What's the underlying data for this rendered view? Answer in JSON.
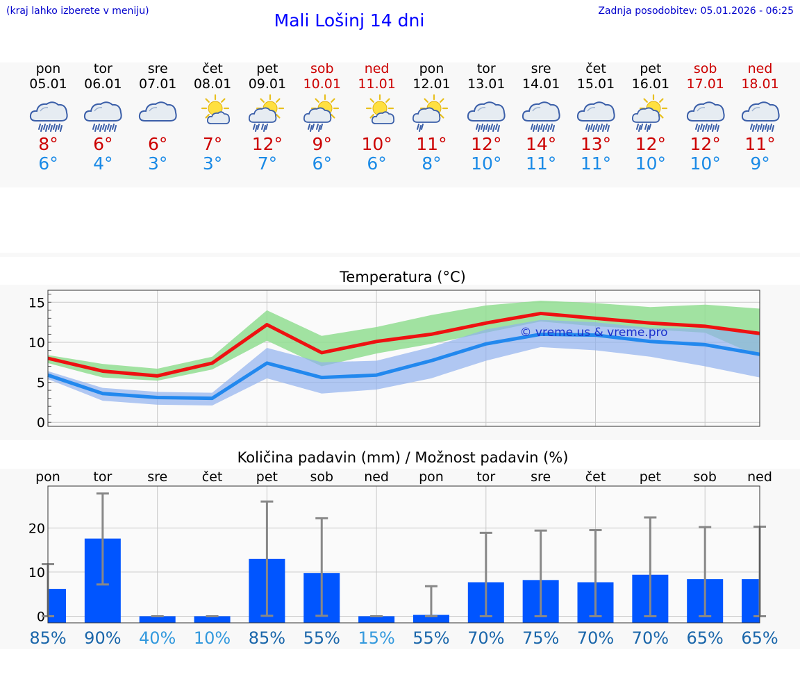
{
  "header": {
    "menu_hint": "(kraj lahko izberete v meniju)",
    "title": "Mali Lošinj 14 dni",
    "updated": "Zadnja posodobitev: 05.01.2026 - 06:25"
  },
  "days": [
    {
      "name": "pon",
      "date": "05.01",
      "icon": "rain-cloud-icon",
      "weekend": false,
      "tmax": "8°",
      "tmin": "6°"
    },
    {
      "name": "tor",
      "date": "06.01",
      "icon": "rain-cloud-icon",
      "weekend": false,
      "tmax": "6°",
      "tmin": "4°"
    },
    {
      "name": "sre",
      "date": "07.01",
      "icon": "cloud-icon",
      "weekend": false,
      "tmax": "6°",
      "tmin": "3°"
    },
    {
      "name": "čet",
      "date": "08.01",
      "icon": "sun-cloud-icon",
      "weekend": false,
      "tmax": "7°",
      "tmin": "3°"
    },
    {
      "name": "pet",
      "date": "09.01",
      "icon": "sun-rain-icon",
      "weekend": false,
      "tmax": "12°",
      "tmin": "7°"
    },
    {
      "name": "sob",
      "date": "10.01",
      "icon": "sun-rain-icon",
      "weekend": true,
      "tmax": "9°",
      "tmin": "6°"
    },
    {
      "name": "ned",
      "date": "11.01",
      "icon": "sun-cloud-icon",
      "weekend": true,
      "tmax": "10°",
      "tmin": "6°"
    },
    {
      "name": "pon",
      "date": "12.01",
      "icon": "sun-drizzle-icon",
      "weekend": false,
      "tmax": "11°",
      "tmin": "8°"
    },
    {
      "name": "tor",
      "date": "13.01",
      "icon": "rain-cloud-icon",
      "weekend": false,
      "tmax": "12°",
      "tmin": "10°"
    },
    {
      "name": "sre",
      "date": "14.01",
      "icon": "rain-cloud-icon",
      "weekend": false,
      "tmax": "14°",
      "tmin": "11°"
    },
    {
      "name": "čet",
      "date": "15.01",
      "icon": "rain-cloud-icon",
      "weekend": false,
      "tmax": "13°",
      "tmin": "11°"
    },
    {
      "name": "pet",
      "date": "16.01",
      "icon": "sun-rain-icon",
      "weekend": false,
      "tmax": "12°",
      "tmin": "10°"
    },
    {
      "name": "sob",
      "date": "17.01",
      "icon": "rain-cloud-icon",
      "weekend": true,
      "tmax": "12°",
      "tmin": "10°"
    },
    {
      "name": "ned",
      "date": "18.01",
      "icon": "rain-cloud-icon",
      "weekend": true,
      "tmax": "11°",
      "tmin": "9°"
    }
  ],
  "colors": {
    "max_line": "#ee1111",
    "min_line": "#2288ee",
    "max_band": "#90dd90",
    "min_band": "#90b0ee",
    "bar": "#0055ff",
    "whisker": "#888888",
    "pct_high": "#1a66aa",
    "pct_low": "#3399dd"
  },
  "chart_data": [
    {
      "type": "line",
      "title": "Temperatura (°C)",
      "watermark": "© vreme.us & vreme.pro",
      "xlabel": "",
      "ylabel": "",
      "ylim": [
        -0.5,
        16.5
      ],
      "yticks": [
        0,
        5,
        10,
        15
      ],
      "grid": true,
      "categories": [
        "05.01",
        "06.01",
        "07.01",
        "08.01",
        "09.01",
        "10.01",
        "11.01",
        "12.01",
        "13.01",
        "14.01",
        "15.01",
        "16.01",
        "17.01",
        "18.01"
      ],
      "series": [
        {
          "name": "max",
          "values": [
            8.0,
            6.4,
            5.8,
            7.4,
            12.2,
            8.7,
            10.1,
            11.0,
            12.4,
            13.6,
            13.0,
            12.4,
            12.0,
            11.1
          ],
          "band_low": [
            7.4,
            5.6,
            5.2,
            6.6,
            10.2,
            7.0,
            8.6,
            9.8,
            11.2,
            12.6,
            12.0,
            11.6,
            11.2,
            8.2
          ],
          "band_high": [
            8.4,
            7.3,
            6.7,
            8.2,
            14.0,
            10.8,
            11.9,
            13.4,
            14.6,
            15.2,
            14.9,
            14.4,
            14.7,
            14.2
          ]
        },
        {
          "name": "min",
          "values": [
            5.9,
            3.6,
            3.1,
            3.0,
            7.4,
            5.6,
            5.9,
            7.7,
            9.8,
            11.0,
            10.9,
            10.1,
            9.7,
            8.5
          ],
          "band_low": [
            5.4,
            2.7,
            2.2,
            2.1,
            5.5,
            3.6,
            4.1,
            5.5,
            7.7,
            9.4,
            9.0,
            8.2,
            7.0,
            5.6
          ],
          "band_high": [
            6.4,
            4.3,
            3.8,
            3.7,
            9.3,
            7.5,
            7.7,
            9.4,
            11.6,
            12.8,
            12.5,
            11.8,
            11.7,
            11.3
          ]
        }
      ]
    },
    {
      "type": "bar",
      "title": "Količina padavin (mm) / Možnost padavin (%)",
      "xlabel": "",
      "ylabel": "",
      "ylim": [
        -1.5,
        29.5
      ],
      "yticks": [
        0,
        10,
        20
      ],
      "grid": true,
      "categories": [
        "pon",
        "tor",
        "sre",
        "čet",
        "pet",
        "sob",
        "ned",
        "pon",
        "tor",
        "sre",
        "čet",
        "pet",
        "sob",
        "ned"
      ],
      "values": [
        6.2,
        17.6,
        0,
        0,
        13.0,
        9.8,
        0,
        0.3,
        7.7,
        8.2,
        7.7,
        9.4,
        8.4,
        8.4
      ],
      "error_low": [
        0,
        7.2,
        0,
        0,
        0.1,
        0.1,
        0,
        0,
        0,
        0,
        0,
        0,
        0,
        0
      ],
      "error_high": [
        11.8,
        27.8,
        0,
        0,
        26.0,
        22.2,
        0,
        6.8,
        18.9,
        19.4,
        19.5,
        22.4,
        20.2,
        20.3
      ],
      "probability": [
        "85%",
        "90%",
        "40%",
        "10%",
        "85%",
        "55%",
        "15%",
        "55%",
        "70%",
        "75%",
        "70%",
        "70%",
        "65%",
        "65%"
      ]
    }
  ]
}
